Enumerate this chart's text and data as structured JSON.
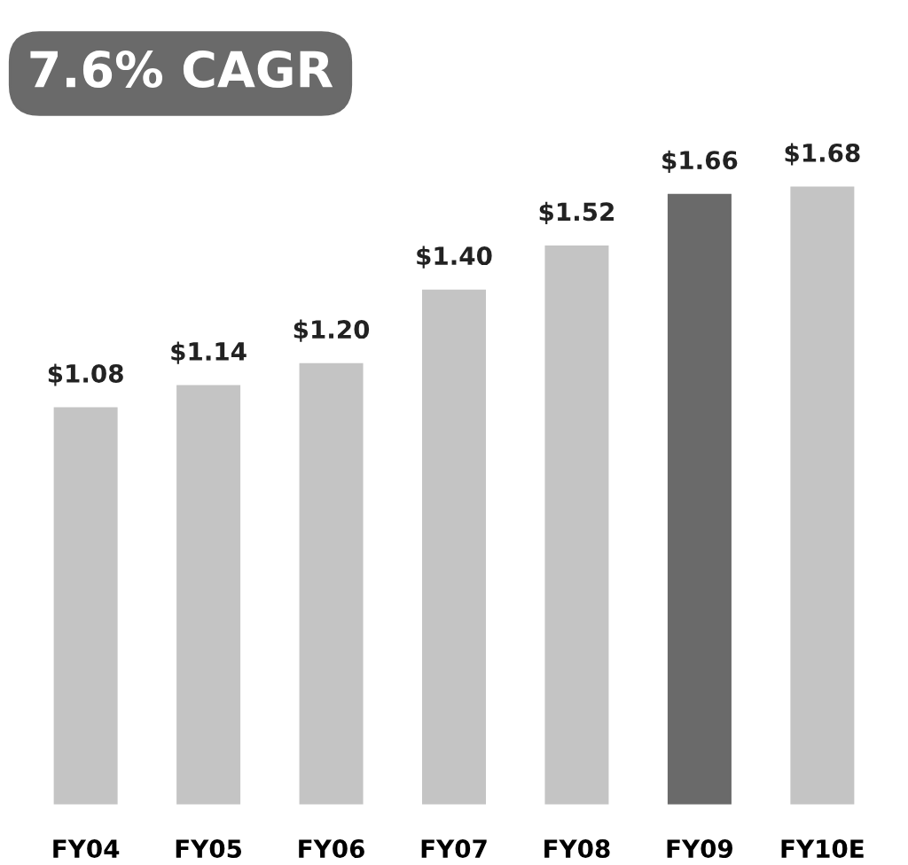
{
  "chart_data": {
    "type": "bar",
    "categories": [
      "FY04",
      "FY05",
      "FY06",
      "FY07",
      "FY08",
      "FY09",
      "FY10E"
    ],
    "values": [
      1.08,
      1.14,
      1.2,
      1.4,
      1.52,
      1.66,
      1.68
    ],
    "value_labels": [
      "$1.08",
      "$1.14",
      "$1.20",
      "$1.40",
      "$1.52",
      "$1.66",
      "$1.68"
    ],
    "colors": [
      "#c4c4c4",
      "#c4c4c4",
      "#c4c4c4",
      "#c4c4c4",
      "#c4c4c4",
      "#6a6a6a",
      "#c4c4c4"
    ],
    "tick_labels": "x",
    "annotations": [
      "7.6% CAGR"
    ]
  }
}
